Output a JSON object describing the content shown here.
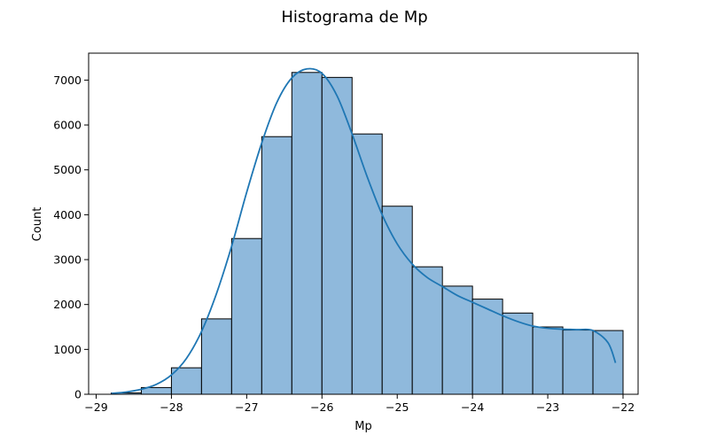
{
  "chart_data": {
    "type": "bar",
    "title": "Histograma de Mp",
    "xlabel": "Mp",
    "ylabel": "Count",
    "xlim": [
      -29.1,
      -21.8
    ],
    "ylim": [
      0,
      7600
    ],
    "bin_width": 0.4,
    "bins": [
      {
        "start": -28.8,
        "end": -28.4,
        "count": 30
      },
      {
        "start": -28.4,
        "end": -28.0,
        "count": 150
      },
      {
        "start": -28.0,
        "end": -27.6,
        "count": 590
      },
      {
        "start": -27.6,
        "end": -27.2,
        "count": 1680
      },
      {
        "start": -27.2,
        "end": -26.8,
        "count": 3470
      },
      {
        "start": -26.8,
        "end": -26.4,
        "count": 5740
      },
      {
        "start": -26.4,
        "end": -26.0,
        "count": 7170
      },
      {
        "start": -26.0,
        "end": -25.6,
        "count": 7060
      },
      {
        "start": -25.6,
        "end": -25.2,
        "count": 5800
      },
      {
        "start": -25.2,
        "end": -24.8,
        "count": 4190
      },
      {
        "start": -24.8,
        "end": -24.4,
        "count": 2840
      },
      {
        "start": -24.4,
        "end": -24.0,
        "count": 2410
      },
      {
        "start": -24.0,
        "end": -23.6,
        "count": 2120
      },
      {
        "start": -23.6,
        "end": -23.2,
        "count": 1810
      },
      {
        "start": -23.2,
        "end": -22.8,
        "count": 1500
      },
      {
        "start": -22.8,
        "end": -22.4,
        "count": 1430
      },
      {
        "start": -22.4,
        "end": -22.0,
        "count": 1420
      }
    ],
    "kde": {
      "x": [
        -28.8,
        -28.6,
        -28.4,
        -28.2,
        -28.0,
        -27.8,
        -27.6,
        -27.4,
        -27.2,
        -27.0,
        -26.8,
        -26.6,
        -26.4,
        -26.2,
        -26.0,
        -25.8,
        -25.6,
        -25.4,
        -25.2,
        -25.0,
        -24.8,
        -24.6,
        -24.4,
        -24.2,
        -24.0,
        -23.8,
        -23.6,
        -23.4,
        -23.2,
        -23.0,
        -22.8,
        -22.6,
        -22.4,
        -22.2,
        -22.1
      ],
      "y": [
        20,
        50,
        110,
        220,
        430,
        800,
        1400,
        2250,
        3300,
        4500,
        5600,
        6500,
        7050,
        7250,
        7150,
        6650,
        5800,
        4850,
        4000,
        3350,
        2900,
        2600,
        2400,
        2200,
        2050,
        1900,
        1750,
        1620,
        1520,
        1470,
        1450,
        1440,
        1420,
        1150,
        700
      ]
    },
    "xticks": [
      -29,
      -28,
      -27,
      -26,
      -25,
      -24,
      -23,
      -22
    ],
    "xtick_labels": [
      "−29",
      "−28",
      "−27",
      "−26",
      "−25",
      "−24",
      "−23",
      "−22"
    ],
    "yticks": [
      0,
      1000,
      2000,
      3000,
      4000,
      5000,
      6000,
      7000
    ],
    "ytick_labels": [
      "0",
      "1000",
      "2000",
      "3000",
      "4000",
      "5000",
      "6000",
      "7000"
    ],
    "colors": {
      "bar_fill": "#8fb9dc",
      "bar_edge": "#000000",
      "kde_line": "#1f77b4"
    }
  }
}
